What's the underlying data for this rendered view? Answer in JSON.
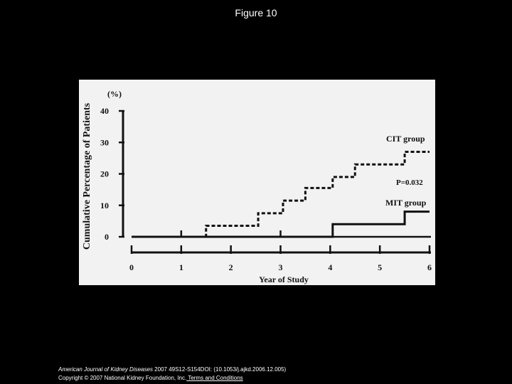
{
  "page": {
    "title": "Figure 10"
  },
  "citation": {
    "journal": "American Journal of Kidney Diseases",
    "details": " 2007 49S12-S154DOI: (10.1053/j.ajkd.2006.12.005)",
    "copyright": "Copyright © 2007 National Kidney Foundation, Inc.",
    "terms_link": " Terms and Conditions"
  },
  "chart_data": {
    "type": "line",
    "ylabel": "Cumulative Percentage of Patients",
    "yunit": "(%)",
    "xlabel": "Year of Study",
    "xlim": [
      0,
      6
    ],
    "ylim": [
      0,
      40
    ],
    "xticks": [
      "0",
      "1",
      "2",
      "3",
      "4",
      "5",
      "6"
    ],
    "yticks": [
      "0",
      "10",
      "20",
      "30",
      "40"
    ],
    "series": [
      {
        "name": "CIT group",
        "style": "dashed",
        "step": true,
        "x": [
          0,
          1.5,
          1.5,
          2.55,
          2.55,
          3.05,
          3.05,
          3.5,
          3.5,
          4.05,
          4.05,
          4.5,
          4.5,
          5.5,
          5.5,
          6
        ],
        "y": [
          0,
          0,
          3.5,
          3.5,
          7.5,
          7.5,
          11.5,
          11.5,
          15.5,
          15.5,
          19,
          19,
          23,
          23,
          27,
          27
        ]
      },
      {
        "name": "MIT group",
        "style": "solid",
        "step": true,
        "x": [
          0,
          4.05,
          4.05,
          5.5,
          5.5,
          6
        ],
        "y": [
          0,
          0,
          4,
          4,
          8,
          8
        ]
      }
    ],
    "annotations": [
      "P=0.032"
    ]
  }
}
